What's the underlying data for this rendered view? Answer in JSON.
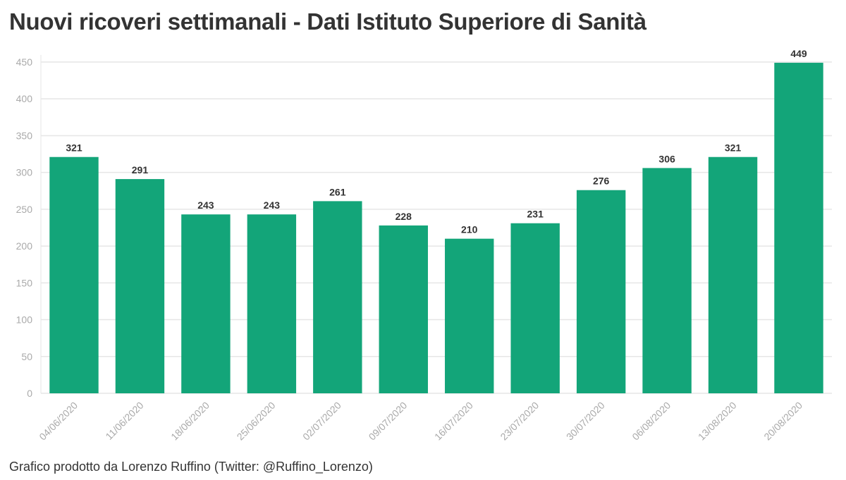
{
  "chart_data": {
    "type": "bar",
    "title": "Nuovi ricoveri settimanali - Dati Istituto Superiore di Sanità",
    "categories": [
      "04/06/2020",
      "11/06/2020",
      "18/06/2020",
      "25/06/2020",
      "02/07/2020",
      "09/07/2020",
      "16/07/2020",
      "23/07/2020",
      "30/07/2020",
      "06/08/2020",
      "13/08/2020",
      "20/08/2020"
    ],
    "values": [
      321,
      291,
      243,
      243,
      261,
      228,
      210,
      231,
      276,
      306,
      321,
      449
    ],
    "ylim": [
      0,
      450
    ],
    "yticks": [
      0,
      50,
      100,
      150,
      200,
      250,
      300,
      350,
      400,
      450
    ],
    "xlabel": "",
    "ylabel": "",
    "grid": true,
    "bar_color": "#13a579",
    "grid_color": "#e6e6e6",
    "tick_color": "#aaaaaa"
  },
  "footer": {
    "credit": "Grafico prodotto da Lorenzo Ruffino (Twitter: @Ruffino_Lorenzo)"
  }
}
